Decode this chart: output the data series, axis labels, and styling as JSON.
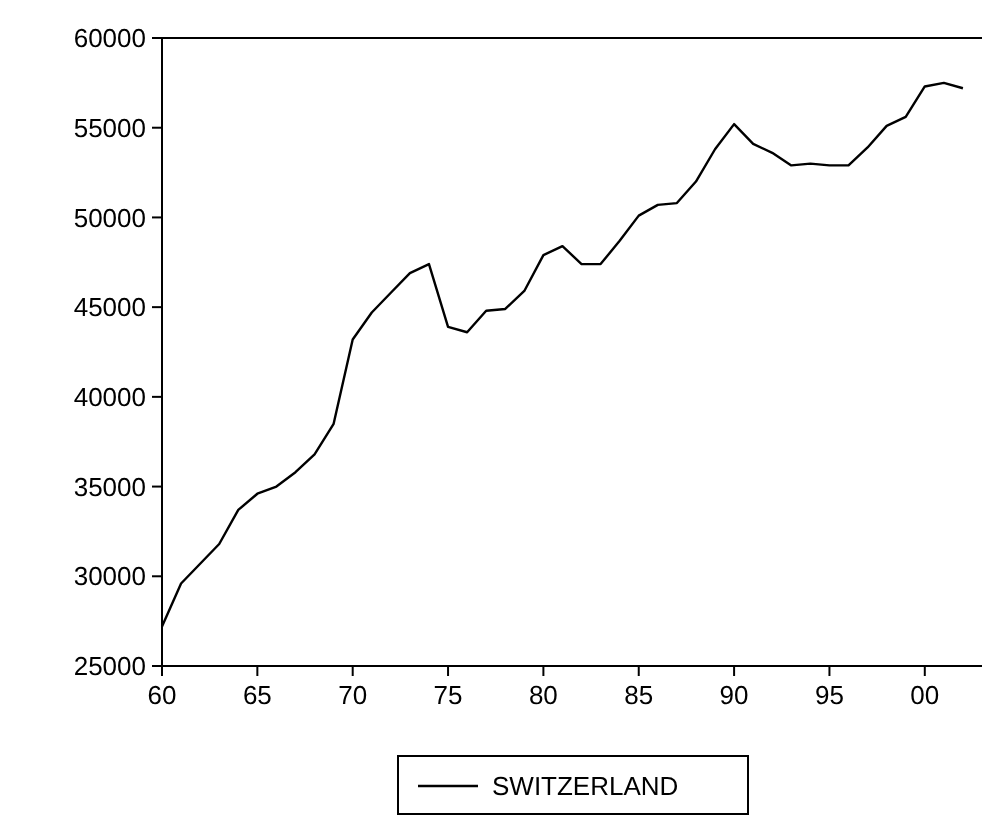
{
  "chart_data": {
    "type": "line",
    "x": [
      1960,
      1961,
      1962,
      1963,
      1964,
      1965,
      1966,
      1967,
      1968,
      1969,
      1970,
      1971,
      1972,
      1973,
      1974,
      1975,
      1976,
      1977,
      1978,
      1979,
      1980,
      1981,
      1982,
      1983,
      1984,
      1985,
      1986,
      1987,
      1988,
      1989,
      1990,
      1991,
      1992,
      1993,
      1994,
      1995,
      1996,
      1997,
      1998,
      1999,
      2000,
      2001,
      2002
    ],
    "series": [
      {
        "name": "SWITZERLAND",
        "color": "#000000",
        "values": [
          27200,
          29600,
          30700,
          31800,
          33700,
          34600,
          35000,
          35800,
          36800,
          38500,
          43200,
          44700,
          45800,
          46900,
          47400,
          43900,
          43600,
          44800,
          44900,
          45900,
          47900,
          48400,
          47400,
          47400,
          48700,
          50100,
          50700,
          50800,
          52000,
          53800,
          55200,
          54100,
          53600,
          52900,
          53000,
          52900,
          52900,
          53900,
          55100,
          55600,
          57300,
          57500,
          57200
        ]
      }
    ],
    "xlim": [
      1960,
      2003
    ],
    "xticks": [
      {
        "value": 1960,
        "label": "60"
      },
      {
        "value": 1965,
        "label": "65"
      },
      {
        "value": 1970,
        "label": "70"
      },
      {
        "value": 1975,
        "label": "75"
      },
      {
        "value": 1980,
        "label": "80"
      },
      {
        "value": 1985,
        "label": "85"
      },
      {
        "value": 1990,
        "label": "90"
      },
      {
        "value": 1995,
        "label": "95"
      },
      {
        "value": 2000,
        "label": "00"
      }
    ],
    "ylim": [
      25000,
      60000
    ],
    "yticks": [
      25000,
      30000,
      35000,
      40000,
      45000,
      50000,
      55000,
      60000
    ],
    "legend": "bottom",
    "grid": false,
    "line_style": "solid",
    "marker": "none"
  }
}
